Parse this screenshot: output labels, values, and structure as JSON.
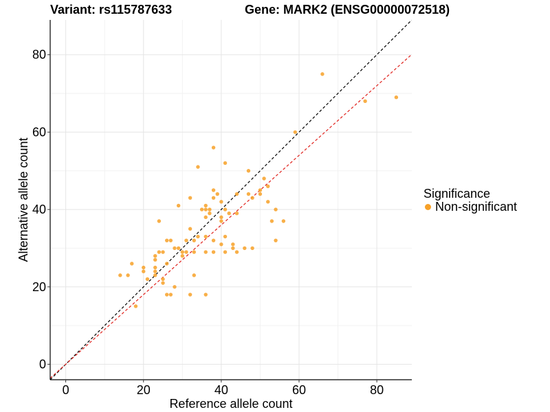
{
  "header": {
    "variant": "Variant: rs115787633",
    "gene": "Gene: MARK2 (ENSG00000072518)"
  },
  "legend": {
    "title": "Significance",
    "items": [
      {
        "label": "Non-significant",
        "color": "#F7A128"
      }
    ]
  },
  "chart_data": {
    "type": "scatter",
    "xlabel": "Reference allele count",
    "ylabel": "Alternative allele count",
    "xlim": [
      -4,
      89
    ],
    "ylim": [
      -4,
      89
    ],
    "xticks": [
      0,
      20,
      40,
      60,
      80
    ],
    "yticks": [
      0,
      20,
      40,
      60,
      80
    ],
    "grid": true,
    "legend_position": "right",
    "point_color": "#F7A128",
    "reference_lines": [
      {
        "slope": 1.0,
        "intercept": 0,
        "color": "#000000",
        "style": "dashed"
      },
      {
        "slope": 0.9,
        "intercept": 0,
        "color": "#E0201B",
        "style": "dashed"
      }
    ],
    "series": [
      {
        "name": "Non-significant",
        "points": [
          [
            14,
            23
          ],
          [
            16,
            23
          ],
          [
            17,
            26
          ],
          [
            18,
            15
          ],
          [
            20,
            24
          ],
          [
            20,
            25
          ],
          [
            21,
            22
          ],
          [
            23,
            23
          ],
          [
            23,
            24
          ],
          [
            23,
            25
          ],
          [
            23,
            27
          ],
          [
            23,
            28
          ],
          [
            24,
            29
          ],
          [
            24,
            37
          ],
          [
            25,
            21
          ],
          [
            25,
            22
          ],
          [
            25,
            29
          ],
          [
            26,
            18
          ],
          [
            26,
            26
          ],
          [
            26,
            32
          ],
          [
            27,
            18
          ],
          [
            27,
            32
          ],
          [
            28,
            20
          ],
          [
            28,
            30
          ],
          [
            29,
            30
          ],
          [
            29,
            41
          ],
          [
            30,
            28
          ],
          [
            30,
            29
          ],
          [
            31,
            29
          ],
          [
            31,
            32
          ],
          [
            32,
            18
          ],
          [
            32,
            35
          ],
          [
            32,
            43
          ],
          [
            33,
            23
          ],
          [
            33,
            29
          ],
          [
            33,
            32
          ],
          [
            34,
            33
          ],
          [
            34,
            51
          ],
          [
            35,
            40
          ],
          [
            36,
            18
          ],
          [
            36,
            29
          ],
          [
            36,
            33
          ],
          [
            36,
            38
          ],
          [
            36,
            40
          ],
          [
            36,
            41
          ],
          [
            37,
            39
          ],
          [
            37,
            40
          ],
          [
            38,
            29
          ],
          [
            38,
            32
          ],
          [
            38,
            43
          ],
          [
            38,
            45
          ],
          [
            38,
            56
          ],
          [
            39,
            44
          ],
          [
            40,
            31
          ],
          [
            40,
            37
          ],
          [
            40,
            38
          ],
          [
            40,
            42
          ],
          [
            41,
            29
          ],
          [
            41,
            33
          ],
          [
            41,
            40
          ],
          [
            41,
            52
          ],
          [
            42,
            39
          ],
          [
            43,
            30
          ],
          [
            43,
            31
          ],
          [
            44,
            29
          ],
          [
            44,
            39
          ],
          [
            44,
            44
          ],
          [
            46,
            30
          ],
          [
            47,
            44
          ],
          [
            47,
            50
          ],
          [
            48,
            30
          ],
          [
            48,
            43
          ],
          [
            50,
            44
          ],
          [
            50,
            45
          ],
          [
            51,
            48
          ],
          [
            52,
            42
          ],
          [
            52,
            46
          ],
          [
            53,
            37
          ],
          [
            54,
            32
          ],
          [
            54,
            40
          ],
          [
            56,
            37
          ],
          [
            59,
            60
          ],
          [
            66,
            75
          ],
          [
            77,
            68
          ],
          [
            85,
            69
          ]
        ]
      }
    ]
  }
}
